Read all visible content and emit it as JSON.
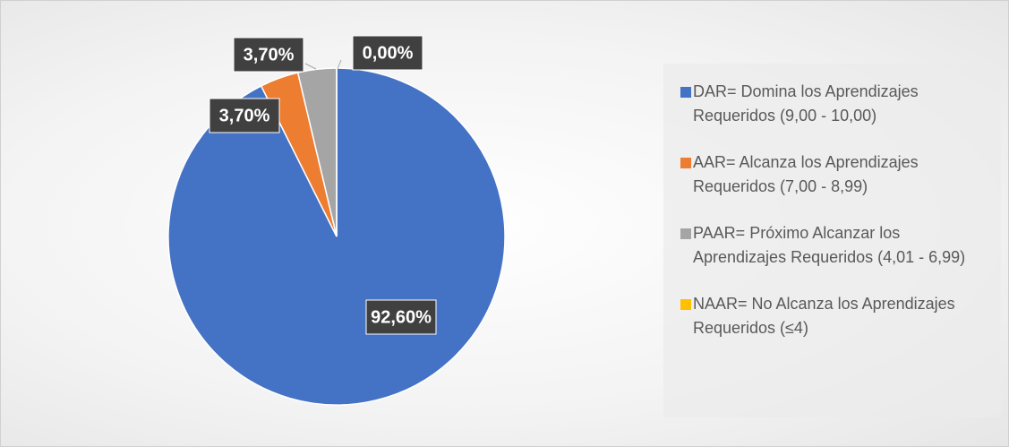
{
  "chart_data": {
    "type": "pie",
    "categories": [
      "DAR= Domina los Aprendizajes Requeridos (9,00 - 10,00)",
      "AAR= Alcanza los Aprendizajes Requeridos (7,00 - 8,99)",
      "PAAR= Próximo Alcanzar los Aprendizajes Requeridos (4,01 - 6,99)",
      "NAAR= No Alcanza los Aprendizajes Requeridos (≤4)"
    ],
    "values": [
      92.6,
      3.7,
      3.7,
      0
    ],
    "value_labels": [
      "92,60%",
      "3,70%",
      "3,70%",
      "0,00%"
    ],
    "colors": [
      "#4472c4",
      "#ed7d31",
      "#a5a5a5",
      "#ffc000"
    ],
    "legend": "right"
  }
}
